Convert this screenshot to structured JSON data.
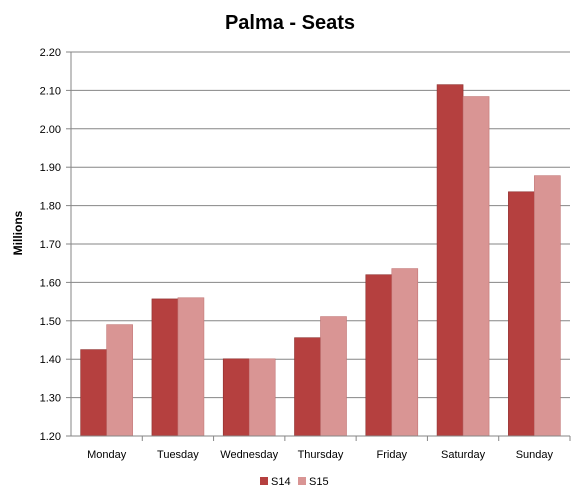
{
  "chart_data": {
    "type": "bar",
    "title": "Palma - Seats",
    "xlabel": "",
    "ylabel": "Millions",
    "categories": [
      "Monday",
      "Tuesday",
      "Wednesday",
      "Thursday",
      "Friday",
      "Saturday",
      "Sunday"
    ],
    "series": [
      {
        "name": "S14",
        "color": "#b5403f",
        "values": [
          1.425,
          1.557,
          1.401,
          1.456,
          1.62,
          2.115,
          1.836
        ]
      },
      {
        "name": "S15",
        "color": "#d99594",
        "values": [
          1.49,
          1.56,
          1.401,
          1.511,
          1.636,
          2.084,
          1.878
        ]
      }
    ],
    "ylim": [
      1.2,
      2.2
    ],
    "yticks": [
      "1.20",
      "1.30",
      "1.40",
      "1.50",
      "1.60",
      "1.70",
      "1.80",
      "1.90",
      "2.00",
      "2.10",
      "2.20"
    ],
    "grid": true,
    "legend_position": "bottom"
  }
}
